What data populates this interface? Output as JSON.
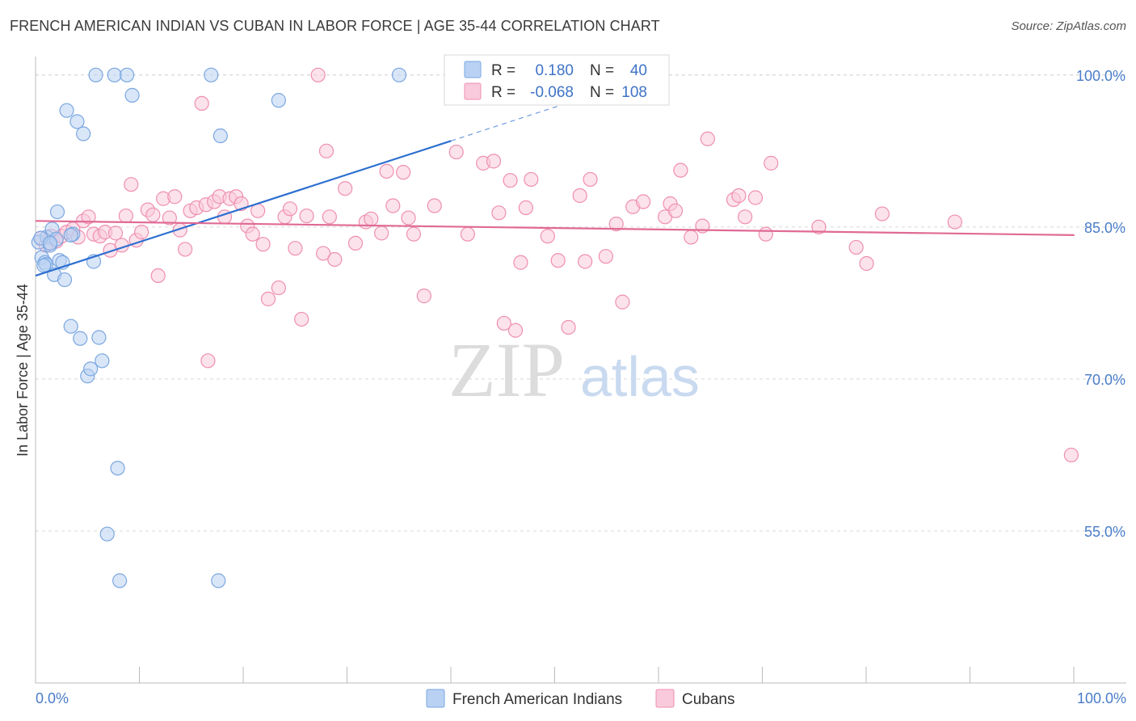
{
  "title": "FRENCH AMERICAN INDIAN VS CUBAN IN LABOR FORCE | AGE 35-44 CORRELATION CHART",
  "source": "Source: ZipAtlas.com",
  "colors": {
    "blue": "#7ba7e0",
    "blue_fill": "#b9d1f3",
    "blue_line": "#2e6fd0",
    "pink": "#ef8fb0",
    "pink_fill": "#f9cadb",
    "pink_line": "#e06a95",
    "axis_label": "#4a7cc9",
    "grid": "#d8d8d8"
  },
  "legend": {
    "rows": [
      {
        "r_label": "R =",
        "r_value": "0.180",
        "n_label": "N =",
        "n_value": "40"
      },
      {
        "r_label": "R =",
        "r_value": "-0.068",
        "n_label": "N =",
        "n_value": "108"
      }
    ]
  },
  "chart_data": {
    "type": "scatter",
    "title": "FRENCH AMERICAN INDIAN VS CUBAN IN LABOR FORCE | AGE 35-44 CORRELATION CHART",
    "xlabel": "",
    "ylabel": "In Labor Force | Age 35-44",
    "xlim": [
      0,
      105
    ],
    "ylim": [
      40,
      101.5
    ],
    "y_ticks": [
      55,
      70,
      85,
      100
    ],
    "y_tick_labels": [
      "55.0%",
      "70.0%",
      "85.0%",
      "100.0%"
    ],
    "x_tick_labels": [
      "0.0%",
      "100.0%"
    ],
    "watermark": {
      "zip": "ZIP",
      "atlas": "atlas"
    },
    "series": [
      {
        "name": "French American Indians",
        "trend": {
          "x0": 0,
          "y0": 80.2,
          "x1": 40,
          "y1": 93.5,
          "dash_to_x": 52,
          "dash_to_y": 97.5
        },
        "points": [
          [
            0.3,
            83.5
          ],
          [
            0.6,
            82
          ],
          [
            0.9,
            81.5
          ],
          [
            1.1,
            84
          ],
          [
            1.4,
            83.2
          ],
          [
            1.6,
            84.8
          ],
          [
            1.8,
            80.3
          ],
          [
            2.1,
            86.5
          ],
          [
            2.3,
            81.7
          ],
          [
            2.6,
            81.5
          ],
          [
            2.8,
            79.8
          ],
          [
            3.0,
            96.5
          ],
          [
            3.4,
            75.2
          ],
          [
            3.6,
            84.3
          ],
          [
            4.0,
            95.4
          ],
          [
            4.3,
            74
          ],
          [
            4.6,
            94.2
          ],
          [
            5.0,
            70.3
          ],
          [
            5.3,
            71
          ],
          [
            5.6,
            81.6
          ],
          [
            6.1,
            74.1
          ],
          [
            6.4,
            71.8
          ],
          [
            5.8,
            100
          ],
          [
            7.6,
            100
          ],
          [
            8.8,
            100
          ],
          [
            9.3,
            98
          ],
          [
            7.9,
            61.2
          ],
          [
            6.9,
            54.7
          ],
          [
            8.1,
            50.1
          ],
          [
            16.9,
            100
          ],
          [
            17.8,
            94
          ],
          [
            23.4,
            97.5
          ],
          [
            35,
            100
          ],
          [
            17.6,
            50.1
          ],
          [
            1.0,
            81.3
          ],
          [
            2.0,
            83.8
          ],
          [
            0.5,
            83.9
          ],
          [
            1.4,
            83.4
          ],
          [
            3.4,
            84.2
          ],
          [
            0.8,
            81.2
          ]
        ]
      },
      {
        "name": "Cubans",
        "trend": {
          "x0": 0,
          "y0": 85.6,
          "x1": 100,
          "y1": 84.2
        },
        "points": [
          [
            0.5,
            83.9
          ],
          [
            1.0,
            83.2
          ],
          [
            1.5,
            84.1
          ],
          [
            2.0,
            83.6
          ],
          [
            2.5,
            84.1
          ],
          [
            3.0,
            84.5
          ],
          [
            3.6,
            84.8
          ],
          [
            4.1,
            84
          ],
          [
            4.6,
            85.6
          ],
          [
            5.1,
            86
          ],
          [
            5.6,
            84.3
          ],
          [
            6.2,
            84.1
          ],
          [
            6.7,
            84.5
          ],
          [
            7.2,
            82.7
          ],
          [
            7.7,
            84.4
          ],
          [
            8.3,
            83.2
          ],
          [
            8.7,
            86.1
          ],
          [
            9.2,
            89.2
          ],
          [
            9.7,
            83.7
          ],
          [
            10.2,
            84.5
          ],
          [
            10.8,
            86.7
          ],
          [
            11.3,
            86.2
          ],
          [
            11.8,
            80.2
          ],
          [
            12.3,
            87.8
          ],
          [
            12.9,
            85.9
          ],
          [
            13.4,
            88
          ],
          [
            13.9,
            84.7
          ],
          [
            14.4,
            82.8
          ],
          [
            14.9,
            86.6
          ],
          [
            15.5,
            86.9
          ],
          [
            16.0,
            97.2
          ],
          [
            16.4,
            87.2
          ],
          [
            16.6,
            71.8
          ],
          [
            17.2,
            87.5
          ],
          [
            17.7,
            88
          ],
          [
            18.2,
            86
          ],
          [
            18.7,
            87.8
          ],
          [
            19.3,
            88
          ],
          [
            19.8,
            87.3
          ],
          [
            20.4,
            85.1
          ],
          [
            20.9,
            84.3
          ],
          [
            21.4,
            86.6
          ],
          [
            21.9,
            83.3
          ],
          [
            22.4,
            77.9
          ],
          [
            23.4,
            79
          ],
          [
            24.0,
            86
          ],
          [
            24.5,
            86.8
          ],
          [
            25.0,
            82.9
          ],
          [
            25.6,
            75.9
          ],
          [
            26.1,
            86.1
          ],
          [
            27.2,
            100
          ],
          [
            28.0,
            92.5
          ],
          [
            27.7,
            82.4
          ],
          [
            28.3,
            86
          ],
          [
            28.8,
            81.8
          ],
          [
            29.8,
            88.8
          ],
          [
            30.8,
            83.4
          ],
          [
            31.8,
            85.5
          ],
          [
            32.3,
            85.8
          ],
          [
            33.3,
            84.4
          ],
          [
            33.8,
            90.5
          ],
          [
            34.4,
            87.1
          ],
          [
            35.4,
            90.4
          ],
          [
            35.9,
            85.9
          ],
          [
            36.4,
            84.3
          ],
          [
            37.4,
            78.2
          ],
          [
            38.4,
            87.1
          ],
          [
            40.5,
            92.4
          ],
          [
            41.6,
            84.3
          ],
          [
            43.1,
            91.3
          ],
          [
            44.1,
            91.5
          ],
          [
            44.6,
            86.4
          ],
          [
            45.1,
            75.5
          ],
          [
            45.7,
            89.6
          ],
          [
            46.2,
            74.8
          ],
          [
            46.7,
            81.5
          ],
          [
            47.2,
            86.9
          ],
          [
            47.7,
            89.7
          ],
          [
            49.3,
            84.1
          ],
          [
            50.3,
            81.7
          ],
          [
            51.3,
            75.1
          ],
          [
            52.4,
            88.1
          ],
          [
            52.9,
            81.6
          ],
          [
            53.4,
            89.7
          ],
          [
            54.9,
            82.1
          ],
          [
            55.9,
            85.3
          ],
          [
            56.5,
            77.6
          ],
          [
            57.5,
            87
          ],
          [
            58.5,
            87.5
          ],
          [
            60.6,
            86
          ],
          [
            61.1,
            87.3
          ],
          [
            61.6,
            86.6
          ],
          [
            62.1,
            90.6
          ],
          [
            63.1,
            84
          ],
          [
            64.2,
            85.1
          ],
          [
            64.7,
            93.7
          ],
          [
            67.2,
            87.7
          ],
          [
            67.7,
            88.1
          ],
          [
            68.3,
            86
          ],
          [
            69.3,
            87.9
          ],
          [
            70.3,
            84.3
          ],
          [
            70.8,
            91.3
          ],
          [
            75.4,
            85
          ],
          [
            79.0,
            83
          ],
          [
            80.0,
            81.4
          ],
          [
            81.5,
            86.3
          ],
          [
            99.7,
            62.5
          ],
          [
            88.5,
            85.5
          ]
        ]
      }
    ]
  },
  "bottom_legend": {
    "items": [
      {
        "label": "French American Indians"
      },
      {
        "label": "Cubans"
      }
    ]
  }
}
